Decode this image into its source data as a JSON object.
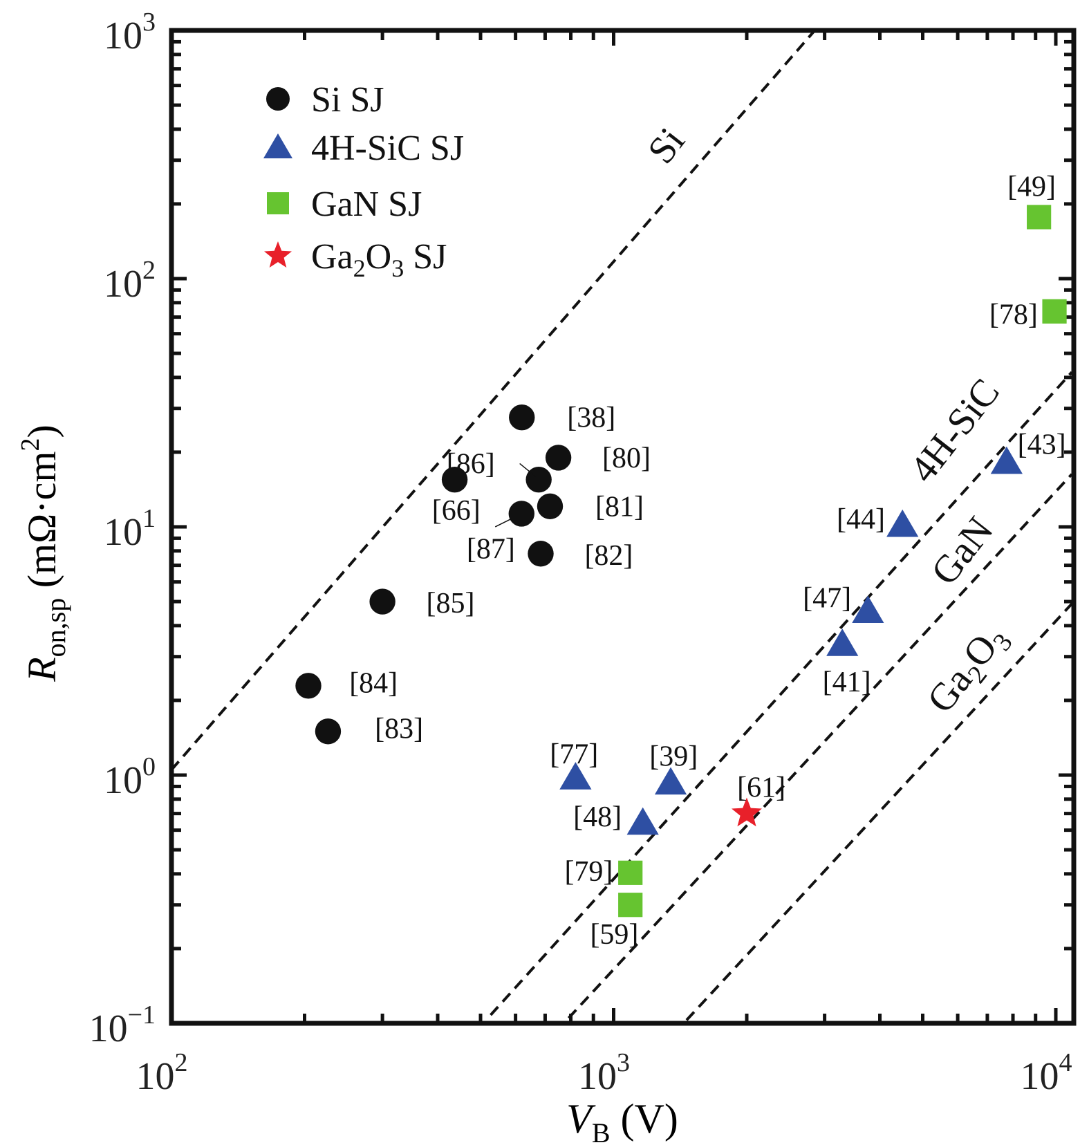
{
  "chart_data": {
    "type": "scatter",
    "xlabel": "V",
    "xlabel_sub": "B",
    "xlabel_unit": " (V)",
    "ylabel": "R",
    "ylabel_sub": "on,sp",
    "ylabel_unit": " (mΩ·cm",
    "ylabel_unit_sup": "2",
    "ylabel_unit_end": ")",
    "x_scale": "log",
    "y_scale": "log",
    "xlim": [
      100,
      11000
    ],
    "ylim": [
      0.1,
      1000
    ],
    "x_ticks": [
      {
        "base": "10",
        "exp": "2",
        "value": 100
      },
      {
        "base": "10",
        "exp": "3",
        "value": 1000
      },
      {
        "base": "10",
        "exp": "4",
        "value": 10000
      }
    ],
    "y_ticks": [
      {
        "base": "10",
        "exp": "−1",
        "value": 0.1
      },
      {
        "base": "10",
        "exp": "0",
        "value": 1
      },
      {
        "base": "10",
        "exp": "1",
        "value": 10
      },
      {
        "base": "10",
        "exp": "2",
        "value": 100
      },
      {
        "base": "10",
        "exp": "3",
        "value": 1000
      }
    ],
    "grid": false,
    "legend_placement": "top-left",
    "series": [
      {
        "name": "Si SJ",
        "marker": "circle",
        "color": "#111111",
        "points": [
          {
            "ref": "[38]",
            "x": 620,
            "y": 27.6
          },
          {
            "ref": "[80]",
            "x": 750,
            "y": 19.0
          },
          {
            "ref": "[86]",
            "x": 677,
            "y": 15.5
          },
          {
            "ref": "[66]",
            "x": 437,
            "y": 15.5
          },
          {
            "ref": "[81]",
            "x": 718,
            "y": 12.1
          },
          {
            "ref": "[87]",
            "x": 619,
            "y": 11.3
          },
          {
            "ref": "[82]",
            "x": 684,
            "y": 7.8
          },
          {
            "ref": "[85]",
            "x": 300,
            "y": 5.0
          },
          {
            "ref": "[84]",
            "x": 204,
            "y": 2.29
          },
          {
            "ref": "[83]",
            "x": 226,
            "y": 1.5
          }
        ]
      },
      {
        "name": "4H-SiC SJ",
        "marker": "triangle",
        "color": "#2e4fa3",
        "points": [
          {
            "ref": "[77]",
            "x": 820,
            "y": 0.98
          },
          {
            "ref": "[39]",
            "x": 1346,
            "y": 0.935
          },
          {
            "ref": "[48]",
            "x": 1164,
            "y": 0.644
          },
          {
            "ref": "[41]",
            "x": 3290,
            "y": 3.38
          },
          {
            "ref": "[47]",
            "x": 3760,
            "y": 4.59
          },
          {
            "ref": "[44]",
            "x": 4500,
            "y": 10.2
          },
          {
            "ref": "[43]",
            "x": 7740,
            "y": 18.3
          }
        ]
      },
      {
        "name": "GaN SJ",
        "marker": "square",
        "color": "#66c430",
        "points": [
          {
            "ref": "[49]",
            "x": 9160,
            "y": 177
          },
          {
            "ref": "[78]",
            "x": 9930,
            "y": 73.8
          },
          {
            "ref": "[79]",
            "x": 1091,
            "y": 0.404
          },
          {
            "ref": "[59]",
            "x": 1091,
            "y": 0.3
          }
        ]
      },
      {
        "name": "Ga2O3 SJ",
        "name_parts": [
          "Ga",
          "2",
          "O",
          "3",
          " SJ"
        ],
        "marker": "star",
        "color": "#e8202a",
        "points": [
          {
            "ref": "[61]",
            "x": 2000,
            "y": 0.7
          }
        ]
      }
    ],
    "limit_lines": [
      {
        "label": "Si",
        "style": "dashed",
        "from": [
          100,
          1.05
        ],
        "to": [
          2850,
          1000
        ]
      },
      {
        "label": "4H-SiC",
        "style": "dashed",
        "from": [
          527,
          0.108
        ],
        "to": [
          10870,
          42
        ]
      },
      {
        "label": "GaN",
        "style": "dashed",
        "from": [
          791,
          0.105
        ],
        "to": [
          10870,
          16.3
        ]
      },
      {
        "label": "Ga2O3",
        "label_parts": [
          "Ga",
          "2",
          "O",
          "3"
        ],
        "style": "dashed",
        "from": [
          1462,
          0.103
        ],
        "to": [
          10870,
          4.9
        ]
      }
    ]
  }
}
